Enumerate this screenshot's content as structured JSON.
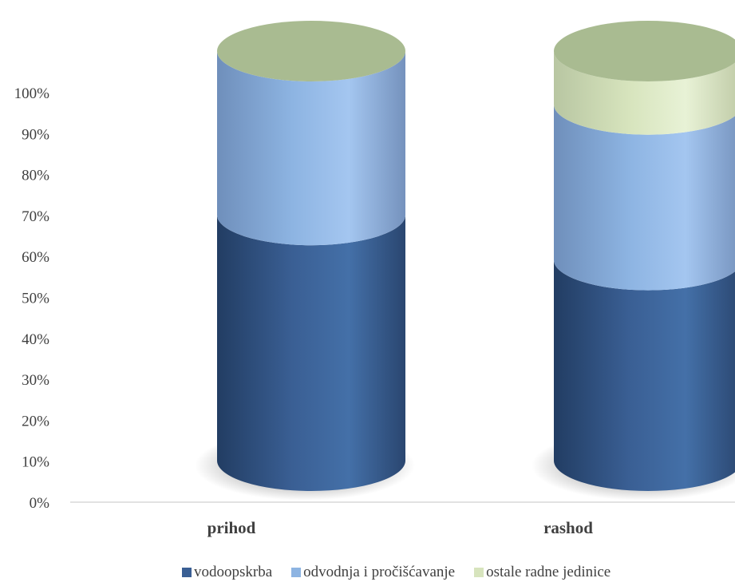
{
  "chart_data": {
    "type": "bar",
    "stacked": true,
    "style": "3d-cylinder",
    "categories": [
      "prihod",
      "rashod"
    ],
    "series": [
      {
        "name": "vodoopskrba",
        "values": [
          60,
          49
        ],
        "color": "#3A5F94"
      },
      {
        "name": "odvodnja i pročišćavanje",
        "values": [
          40,
          38
        ],
        "color": "#8DB4E2"
      },
      {
        "name": "ostale radne jedinice",
        "values": [
          0,
          13
        ],
        "color": "#D7E4BD"
      }
    ],
    "yticks": [
      "0%",
      "10%",
      "20%",
      "30%",
      "40%",
      "50%",
      "60%",
      "70%",
      "80%",
      "90%",
      "100%"
    ],
    "ylim": [
      0,
      100
    ],
    "grid": false,
    "legend_position": "bottom"
  }
}
